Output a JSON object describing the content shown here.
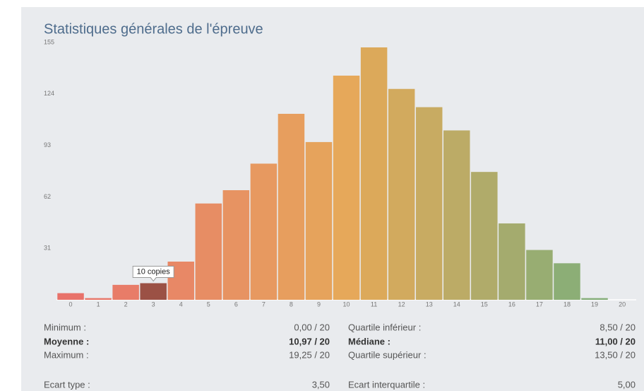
{
  "chart_data": {
    "type": "bar",
    "title": "Statistiques générales de l'épreuve",
    "categories": [
      "0",
      "1",
      "2",
      "3",
      "4",
      "5",
      "6",
      "7",
      "8",
      "9",
      "10",
      "11",
      "12",
      "13",
      "14",
      "15",
      "16",
      "17",
      "18",
      "19",
      "20"
    ],
    "values": [
      4,
      1,
      9,
      10,
      23,
      58,
      66,
      82,
      112,
      95,
      135,
      152,
      127,
      116,
      102,
      77,
      46,
      30,
      22,
      1,
      0
    ],
    "colors": [
      "#e8726a",
      "#e87769",
      "#e87c68",
      "#9b5145",
      "#e88866",
      "#e78d64",
      "#e79362",
      "#e79960",
      "#e79e5e",
      "#e6a35c",
      "#e6a85a",
      "#dca95a",
      "#d2aa5e",
      "#c8ab62",
      "#bcab66",
      "#b0ab6a",
      "#a4ab6e",
      "#98ad72",
      "#8cae76",
      "#84ad78",
      "#80ac78"
    ],
    "highlight": 3,
    "tooltip": "10 copies",
    "ylim": [
      0,
      155
    ],
    "yticks": [
      31,
      62,
      93,
      124,
      155
    ]
  },
  "stats": [
    {
      "bold": false,
      "cells": [
        "Minimum :",
        "0,00 / 20",
        "Quartile inférieur :",
        "8,50 / 20"
      ]
    },
    {
      "bold": true,
      "cells": [
        "Moyenne :",
        "10,97 / 20",
        "Médiane :",
        "11,00 / 20"
      ]
    },
    {
      "bold": false,
      "cells": [
        "Maximum :",
        "19,25 / 20",
        "Quartile supérieur :",
        "13,50 / 20"
      ]
    },
    {
      "bold": false,
      "cells": [
        "Ecart type :",
        "3,50",
        "Ecart interquartile :",
        "5,00"
      ]
    }
  ]
}
